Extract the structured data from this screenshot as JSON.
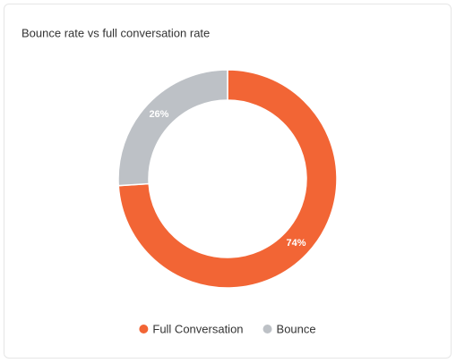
{
  "chart_data": {
    "type": "donut",
    "title": "Bounce rate vs full conversation rate",
    "categories": [
      "Full Conversation",
      "Bounce"
    ],
    "values": [
      74,
      26
    ],
    "value_labels": [
      "74%",
      "26%"
    ],
    "colors": [
      "#f26535",
      "#bdc1c6"
    ]
  }
}
